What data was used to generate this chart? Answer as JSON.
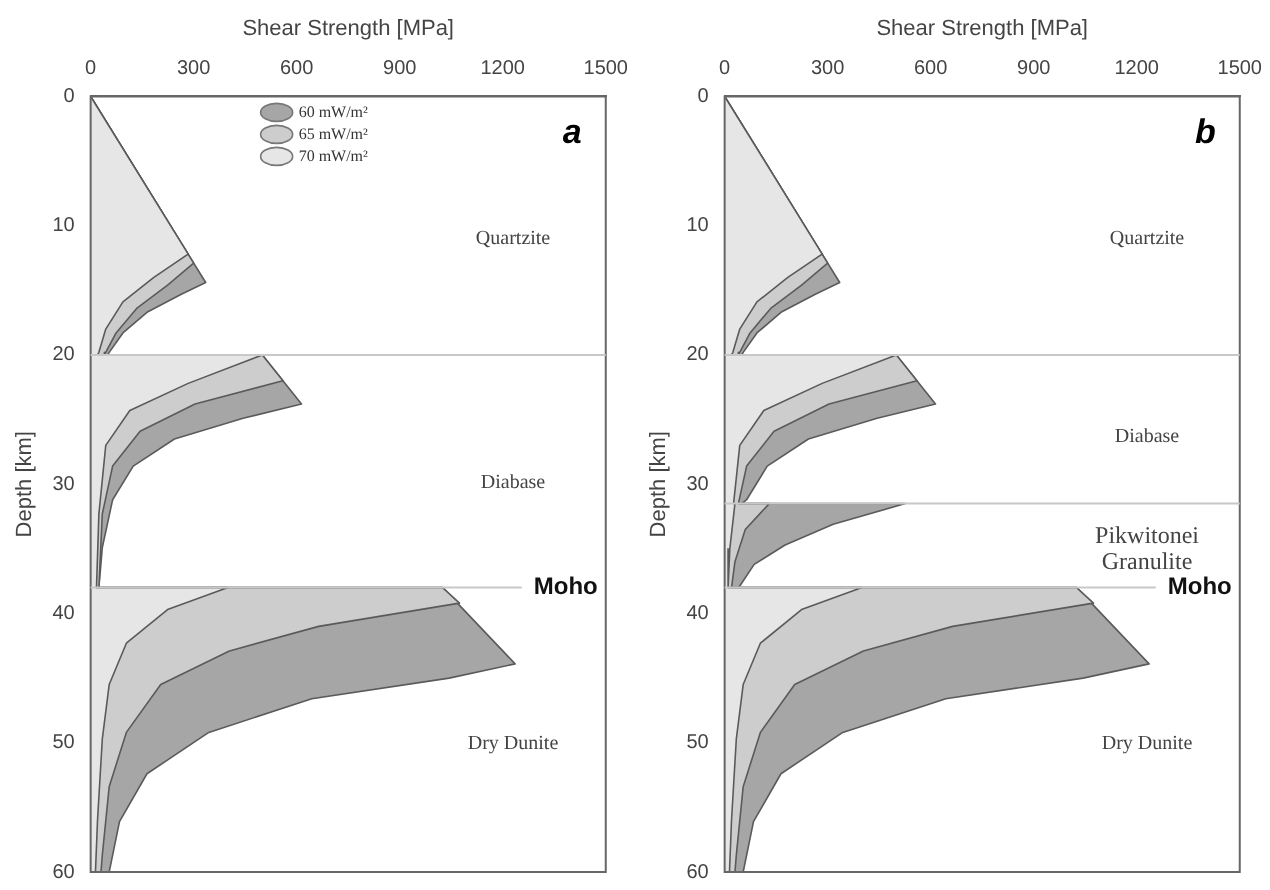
{
  "chart_data": [
    {
      "type": "area",
      "xlabel": "Shear Strength [MPa]",
      "ylabel": "Depth [km]",
      "xlim": [
        0,
        1500
      ],
      "xticks": [
        0,
        300,
        600,
        900,
        1200,
        1500
      ],
      "ylim": [
        60,
        0
      ],
      "yticks": [
        0,
        10,
        20,
        30,
        40,
        50,
        60
      ],
      "grid": false,
      "legend": "top",
      "annotations": [
        "a",
        "Quartzite",
        "Diabase",
        "Dry Dunite"
      ],
      "ref_lines": [
        {
          "axis": "y",
          "value": 20,
          "color": "#c8c8c8"
        },
        {
          "axis": "y",
          "value": 38,
          "label": "Moho",
          "color": "#c8c8c8"
        }
      ],
      "series": [
        {
          "name": "60 mW/m²",
          "color": "#a6a6a6",
          "x": [
            0,
            335,
            264,
            164,
            94,
            54,
            50,
            500,
            614,
            444,
            244,
            124,
            64,
            34,
            24,
            1025,
            1236,
            1044,
            644,
            344,
            164,
            84,
            54,
            0
          ],
          "values": [
            0,
            14.4,
            15.3,
            16.7,
            18.3,
            19.8,
            20,
            20,
            23.8,
            24.9,
            26.5,
            28.6,
            31.2,
            34.9,
            38,
            38,
            43.9,
            45,
            46.6,
            49.2,
            52.4,
            56.1,
            60,
            60
          ]
        },
        {
          "name": "65 mW/m²",
          "color": "#cdcdcd",
          "x": [
            0,
            300,
            224,
            134,
            74,
            44,
            40,
            500,
            560,
            304,
            144,
            64,
            34,
            24,
            1025,
            1074,
            664,
            404,
            204,
            104,
            54,
            34,
            30,
            0
          ],
          "values": [
            0,
            12.9,
            14.6,
            16.4,
            18.3,
            19.8,
            20,
            20,
            22,
            23.8,
            25.9,
            28.6,
            32.3,
            38,
            38,
            39.2,
            41,
            42.9,
            45.5,
            49.2,
            53.4,
            58.7,
            60,
            60
          ]
        },
        {
          "name": "70 mW/m²",
          "color": "#e6e6e6",
          "x": [
            0,
            284,
            184,
            94,
            44,
            24,
            20,
            500,
            284,
            114,
            44,
            24,
            17,
            400,
            224,
            104,
            54,
            34,
            20,
            14,
            0
          ],
          "values": [
            0,
            12.2,
            14,
            15.9,
            18,
            19.8,
            20,
            20,
            22.2,
            24.3,
            27,
            32.3,
            38,
            38,
            39.7,
            42.3,
            45.5,
            49.7,
            56,
            60,
            60
          ]
        }
      ]
    },
    {
      "type": "area",
      "xlabel": "Shear Strength [MPa]",
      "ylabel": "Depth [km]",
      "xlim": [
        0,
        1500
      ],
      "xticks": [
        0,
        300,
        600,
        900,
        1200,
        1500
      ],
      "ylim": [
        60,
        0
      ],
      "yticks": [
        0,
        10,
        20,
        30,
        40,
        50,
        60
      ],
      "grid": false,
      "annotations": [
        "b",
        "Quartzite",
        "Diabase",
        "Pikwitonei Granulite",
        "Dry Dunite"
      ],
      "ref_lines": [
        {
          "axis": "y",
          "value": 20,
          "color": "#c8c8c8"
        },
        {
          "axis": "y",
          "value": 31.5,
          "color": "#c8c8c8"
        },
        {
          "axis": "y",
          "value": 38,
          "label": "Moho",
          "color": "#c8c8c8"
        }
      ],
      "series": [
        {
          "color": "#a6a6a6",
          "x": [
            0,
            335,
            264,
            164,
            94,
            54,
            50,
            500,
            614,
            444,
            244,
            124,
            64,
            50,
            526,
            316,
            176,
            86,
            46,
            40,
            1025,
            1236,
            1044,
            644,
            344,
            164,
            84,
            54,
            0
          ],
          "values": [
            0,
            14.4,
            15.3,
            16.7,
            18.3,
            19.8,
            20,
            20,
            23.8,
            24.9,
            26.5,
            28.6,
            31.2,
            31.5,
            31.5,
            33.1,
            34.7,
            36.2,
            37.8,
            38,
            38,
            43.9,
            45,
            46.6,
            49.2,
            52.4,
            56.1,
            60,
            60
          ]
        },
        {
          "color": "#cdcdcd",
          "x": [
            0,
            300,
            224,
            134,
            74,
            44,
            40,
            500,
            560,
            304,
            144,
            64,
            40,
            130,
            60,
            30,
            20,
            1025,
            1074,
            664,
            404,
            204,
            104,
            54,
            34,
            30,
            0
          ],
          "values": [
            0,
            12.9,
            14.6,
            16.4,
            18.3,
            19.8,
            20,
            20,
            22,
            23.8,
            25.9,
            28.6,
            31.5,
            31.5,
            33.5,
            36,
            38,
            38,
            39.2,
            41,
            42.9,
            45.5,
            49.2,
            53.4,
            58.7,
            60,
            60
          ]
        },
        {
          "color": "#e6e6e6",
          "x": [
            0,
            284,
            184,
            94,
            44,
            24,
            20,
            500,
            284,
            114,
            44,
            26,
            30,
            15,
            10,
            400,
            224,
            104,
            54,
            34,
            20,
            14,
            0
          ],
          "values": [
            0,
            12.2,
            14,
            15.9,
            18,
            19.8,
            20,
            20,
            22.2,
            24.3,
            27,
            31.5,
            31.5,
            35,
            38,
            38,
            39.7,
            42.3,
            45.5,
            49.7,
            56,
            60,
            60
          ]
        }
      ]
    }
  ]
}
